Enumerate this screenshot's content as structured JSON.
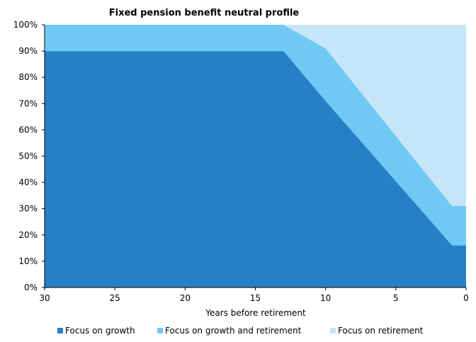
{
  "chart_data": {
    "type": "area",
    "stacked": true,
    "title": "Fixed pension benefit neutral profile",
    "xlabel": "Years before retirement",
    "ylabel": "",
    "x_reversed": true,
    "xlim": [
      30,
      0
    ],
    "ylim": [
      0,
      100
    ],
    "x_ticks": [
      30,
      25,
      20,
      15,
      10,
      5,
      0
    ],
    "x_tick_labels": [
      "30",
      "25",
      "20",
      "15",
      "10",
      "5",
      "0"
    ],
    "y_ticks": [
      0,
      10,
      20,
      30,
      40,
      50,
      60,
      70,
      80,
      90,
      100
    ],
    "y_tick_labels": [
      "0%",
      "10%",
      "20%",
      "30%",
      "40%",
      "50%",
      "60%",
      "70%",
      "80%",
      "90%",
      "100%"
    ],
    "y_unit": "%",
    "x": [
      30,
      13,
      10,
      1,
      0
    ],
    "series": [
      {
        "name": "Focus on growth",
        "color": "#2580C8",
        "values": [
          90,
          90,
          71,
          16,
          16
        ]
      },
      {
        "name": "Focus on growth and retirement",
        "color": "#6FC9F4",
        "values": [
          10,
          10,
          20,
          15,
          15
        ]
      },
      {
        "name": "Focus on retirement",
        "color": "#C5E5F8",
        "values": [
          0,
          0,
          9,
          69,
          69
        ]
      }
    ],
    "legend_position": "bottom",
    "grid": false
  }
}
